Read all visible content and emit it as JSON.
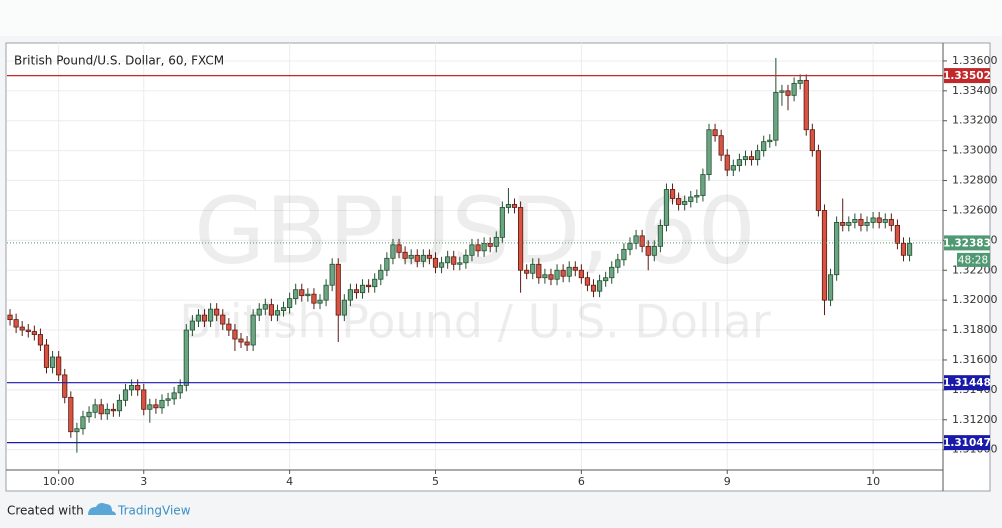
{
  "chart_data": {
    "type": "candlestick",
    "title": "British Pound/U.S. Dollar, 60, FXCM",
    "watermark_symbol": "GBPUSD, 60",
    "watermark_name": "British Pound / U.S. Dollar",
    "up_color": "#6ba583",
    "down_color": "#d75442",
    "open": [
      1.319,
      1.3187,
      1.3182,
      1.318,
      1.3179,
      1.3177,
      1.317,
      1.3155,
      1.3162,
      1.315,
      1.3135,
      1.3112,
      1.3114,
      1.3122,
      1.3125,
      1.313,
      1.3124,
      1.3127,
      1.3126,
      1.3133,
      1.314,
      1.3143,
      1.314,
      1.3127,
      1.313,
      1.3128,
      1.3133,
      1.3134,
      1.3138,
      1.3143,
      1.318,
      1.3186,
      1.319,
      1.3186,
      1.3194,
      1.319,
      1.3184,
      1.318,
      1.3174,
      1.3172,
      1.317,
      1.319,
      1.3194,
      1.3197,
      1.319,
      1.3193,
      1.3195,
      1.3201,
      1.3207,
      1.3203,
      1.3204,
      1.3198,
      1.32,
      1.321,
      1.3224,
      1.319,
      1.32,
      1.3207,
      1.3205,
      1.321,
      1.3209,
      1.3214,
      1.322,
      1.3228,
      1.3237,
      1.3232,
      1.3228,
      1.323,
      1.3226,
      1.323,
      1.3228,
      1.3222,
      1.3225,
      1.3229,
      1.3224,
      1.3225,
      1.323,
      1.3237,
      1.3233,
      1.3238,
      1.3236,
      1.3242,
      1.3262,
      1.3264,
      1.3262,
      1.322,
      1.3218,
      1.3224,
      1.3215,
      1.3217,
      1.3214,
      1.322,
      1.3216,
      1.3222,
      1.322,
      1.3215,
      1.321,
      1.3206,
      1.3213,
      1.3215,
      1.3222,
      1.3227,
      1.3234,
      1.3238,
      1.3243,
      1.3236,
      1.323,
      1.3236,
      1.325,
      1.3274,
      1.3268,
      1.3264,
      1.3266,
      1.3269,
      1.327,
      1.3284,
      1.3314,
      1.331,
      1.3297,
      1.3287,
      1.329,
      1.3294,
      1.3296,
      1.3294,
      1.33,
      1.3306,
      1.3307,
      1.3339,
      1.334,
      1.3337,
      1.3345,
      1.3347,
      1.3314,
      1.33,
      1.326,
      1.32,
      1.3217,
      1.3252,
      1.325,
      1.3252,
      1.3254,
      1.325,
      1.3252,
      1.3255,
      1.3252,
      1.3254,
      1.325,
      1.3238,
      1.323
    ],
    "high": [
      1.3194,
      1.3191,
      1.3186,
      1.3184,
      1.3183,
      1.3181,
      1.3174,
      1.3166,
      1.3166,
      1.3154,
      1.3139,
      1.3118,
      1.3126,
      1.3129,
      1.3134,
      1.3134,
      1.3131,
      1.3131,
      1.3137,
      1.3144,
      1.3147,
      1.3147,
      1.3144,
      1.3134,
      1.3134,
      1.3137,
      1.3138,
      1.3142,
      1.3147,
      1.3184,
      1.319,
      1.3194,
      1.3194,
      1.3198,
      1.3198,
      1.3194,
      1.3188,
      1.3184,
      1.3178,
      1.3176,
      1.3194,
      1.3198,
      1.3201,
      1.3201,
      1.3197,
      1.3199,
      1.3205,
      1.3211,
      1.3211,
      1.3208,
      1.3208,
      1.3204,
      1.3214,
      1.3228,
      1.3228,
      1.3204,
      1.3211,
      1.3211,
      1.3214,
      1.3214,
      1.3218,
      1.3224,
      1.3232,
      1.3241,
      1.3241,
      1.3236,
      1.3234,
      1.3234,
      1.3234,
      1.3234,
      1.3232,
      1.3229,
      1.3233,
      1.3233,
      1.3229,
      1.3234,
      1.3241,
      1.3241,
      1.3242,
      1.3242,
      1.3246,
      1.3266,
      1.3275,
      1.3268,
      1.3266,
      1.3224,
      1.3228,
      1.3228,
      1.3221,
      1.3221,
      1.3224,
      1.3224,
      1.3226,
      1.3226,
      1.3224,
      1.3219,
      1.3214,
      1.3217,
      1.3219,
      1.3226,
      1.3231,
      1.3238,
      1.3242,
      1.3247,
      1.3247,
      1.324,
      1.324,
      1.3254,
      1.3278,
      1.3278,
      1.3272,
      1.327,
      1.3273,
      1.3274,
      1.3288,
      1.3318,
      1.3318,
      1.3314,
      1.3301,
      1.3294,
      1.3298,
      1.33,
      1.33,
      1.3304,
      1.331,
      1.3311,
      1.3362,
      1.3344,
      1.3344,
      1.3349,
      1.3351,
      1.3351,
      1.3318,
      1.3304,
      1.3264,
      1.3221,
      1.3256,
      1.3268,
      1.3256,
      1.3258,
      1.3258,
      1.3256,
      1.3259,
      1.3259,
      1.3258,
      1.3258,
      1.3254,
      1.3242,
      1.3242
    ],
    "low": [
      1.3183,
      1.3178,
      1.3176,
      1.3175,
      1.3173,
      1.3166,
      1.3151,
      1.3151,
      1.3146,
      1.3131,
      1.3108,
      1.3098,
      1.311,
      1.3118,
      1.3121,
      1.312,
      1.312,
      1.3122,
      1.3122,
      1.3129,
      1.3136,
      1.3136,
      1.3123,
      1.3118,
      1.3124,
      1.3124,
      1.3129,
      1.313,
      1.3134,
      1.3139,
      1.3176,
      1.3182,
      1.3182,
      1.3182,
      1.3186,
      1.318,
      1.3176,
      1.3166,
      1.3168,
      1.3166,
      1.3166,
      1.3186,
      1.319,
      1.3186,
      1.3186,
      1.3189,
      1.3191,
      1.3197,
      1.3199,
      1.3199,
      1.3194,
      1.3194,
      1.3196,
      1.3206,
      1.3172,
      1.3186,
      1.3196,
      1.3201,
      1.3201,
      1.3205,
      1.3205,
      1.321,
      1.3216,
      1.3224,
      1.3228,
      1.3224,
      1.3224,
      1.3222,
      1.3222,
      1.3224,
      1.3218,
      1.3218,
      1.3221,
      1.322,
      1.322,
      1.3221,
      1.3226,
      1.3229,
      1.3229,
      1.3232,
      1.3232,
      1.3238,
      1.3258,
      1.3258,
      1.3205,
      1.3214,
      1.3214,
      1.3211,
      1.3211,
      1.321,
      1.321,
      1.3212,
      1.3212,
      1.3216,
      1.3211,
      1.3206,
      1.3202,
      1.3202,
      1.3209,
      1.3211,
      1.3218,
      1.3223,
      1.323,
      1.3234,
      1.3232,
      1.322,
      1.3226,
      1.3232,
      1.3246,
      1.3264,
      1.326,
      1.326,
      1.3262,
      1.3265,
      1.3266,
      1.328,
      1.3306,
      1.3293,
      1.3283,
      1.3283,
      1.3286,
      1.329,
      1.329,
      1.329,
      1.3296,
      1.3302,
      1.3303,
      1.333,
      1.3327,
      1.3333,
      1.3341,
      1.331,
      1.3296,
      1.3256,
      1.319,
      1.3196,
      1.3213,
      1.3246,
      1.3246,
      1.3248,
      1.3246,
      1.3246,
      1.3248,
      1.3248,
      1.3248,
      1.3246,
      1.3234,
      1.3226,
      1.3226
    ],
    "close": [
      1.3187,
      1.3182,
      1.318,
      1.3179,
      1.3177,
      1.317,
      1.3155,
      1.3162,
      1.315,
      1.3135,
      1.3112,
      1.3114,
      1.3122,
      1.3125,
      1.313,
      1.3124,
      1.3127,
      1.3126,
      1.3133,
      1.314,
      1.3143,
      1.314,
      1.3127,
      1.313,
      1.3128,
      1.3133,
      1.3134,
      1.3138,
      1.3143,
      1.318,
      1.3186,
      1.319,
      1.3186,
      1.3194,
      1.319,
      1.3184,
      1.318,
      1.3174,
      1.3172,
      1.317,
      1.319,
      1.3194,
      1.3197,
      1.319,
      1.3193,
      1.3195,
      1.3201,
      1.3207,
      1.3203,
      1.3204,
      1.3198,
      1.32,
      1.321,
      1.3224,
      1.319,
      1.32,
      1.3207,
      1.3205,
      1.321,
      1.3209,
      1.3214,
      1.322,
      1.3228,
      1.3237,
      1.3232,
      1.3228,
      1.323,
      1.3226,
      1.323,
      1.3228,
      1.3222,
      1.3225,
      1.3229,
      1.3224,
      1.3225,
      1.323,
      1.3237,
      1.3233,
      1.3238,
      1.3236,
      1.3242,
      1.3262,
      1.3264,
      1.3262,
      1.322,
      1.3218,
      1.3224,
      1.3215,
      1.3217,
      1.3214,
      1.322,
      1.3216,
      1.3222,
      1.322,
      1.3215,
      1.321,
      1.3206,
      1.3213,
      1.3215,
      1.3222,
      1.3227,
      1.3234,
      1.3238,
      1.3243,
      1.3236,
      1.323,
      1.3236,
      1.325,
      1.3274,
      1.3268,
      1.3264,
      1.3266,
      1.3269,
      1.327,
      1.3284,
      1.3314,
      1.331,
      1.3297,
      1.3287,
      1.329,
      1.3294,
      1.3296,
      1.3294,
      1.33,
      1.3306,
      1.3307,
      1.3339,
      1.334,
      1.3337,
      1.3345,
      1.3347,
      1.3314,
      1.33,
      1.326,
      1.32,
      1.3217,
      1.3252,
      1.325,
      1.3252,
      1.3254,
      1.325,
      1.3252,
      1.3255,
      1.3252,
      1.3254,
      1.325,
      1.3238,
      1.323,
      1.3238
    ],
    "xlim": [
      -0.5,
      153.5
    ],
    "xticks": [
      {
        "value": 8,
        "label": "10:00"
      },
      {
        "value": 22,
        "label": "3"
      },
      {
        "value": 46,
        "label": "4"
      },
      {
        "value": 70,
        "label": "5"
      },
      {
        "value": 94,
        "label": "6"
      },
      {
        "value": 118,
        "label": "9"
      },
      {
        "value": 142,
        "label": "10"
      }
    ],
    "ylim": [
      1.30864,
      1.3372
    ],
    "yticks": [
      {
        "value": 1.31,
        "label": "1.31000"
      },
      {
        "value": 1.312,
        "label": "1.31200"
      },
      {
        "value": 1.314,
        "label": "1.31400"
      },
      {
        "value": 1.316,
        "label": "1.31600"
      },
      {
        "value": 1.318,
        "label": "1.31800"
      },
      {
        "value": 1.32,
        "label": "1.32000"
      },
      {
        "value": 1.322,
        "label": "1.32200"
      },
      {
        "value": 1.324,
        "label": "1.32400"
      },
      {
        "value": 1.326,
        "label": "1.32600"
      },
      {
        "value": 1.328,
        "label": "1.32800"
      },
      {
        "value": 1.33,
        "label": "1.33000"
      },
      {
        "value": 1.332,
        "label": "1.33200"
      },
      {
        "value": 1.334,
        "label": "1.33400"
      },
      {
        "value": 1.336,
        "label": "1.33600"
      }
    ],
    "grid": true,
    "levels": [
      {
        "value": 1.33502,
        "color": "#c0282a"
      },
      {
        "value": 1.31448,
        "color": "#1a1aa8"
      },
      {
        "value": 1.31047,
        "color": "#1a1aa8"
      }
    ],
    "last_price": {
      "value": 1.32383,
      "color": "#4f9a72",
      "countdown": "48:28"
    },
    "footer_created": "Created with",
    "footer_brand": "TradingView"
  }
}
